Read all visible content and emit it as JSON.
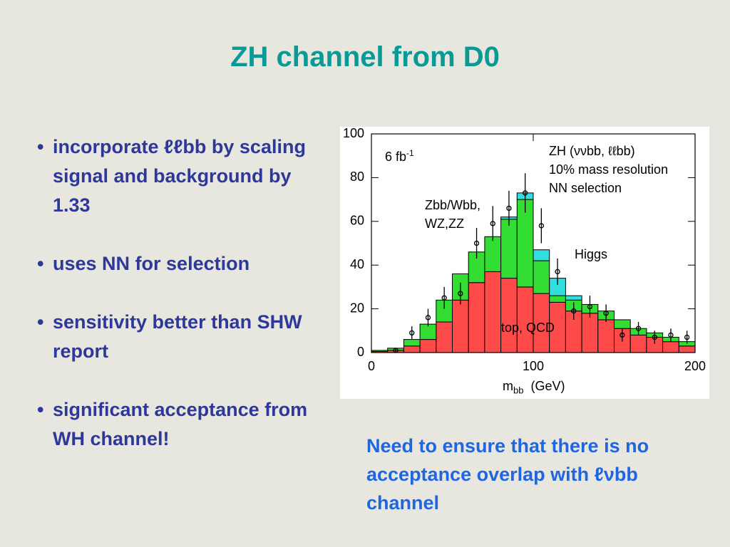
{
  "title": "ZH channel from D0",
  "bullets": [
    "incorporate ℓℓbb by scaling signal and background by 1.33",
    "uses NN for selection",
    "sensitivity better than SHW report",
    "significant acceptance from WH channel!"
  ],
  "note": "Need to ensure that there is no acceptance overlap with ℓνbb channel",
  "chart_data": {
    "type": "histogram",
    "bins": [
      0,
      10,
      20,
      30,
      40,
      50,
      60,
      70,
      80,
      90,
      100,
      110,
      120,
      130,
      140,
      150,
      160,
      170,
      180,
      190,
      200
    ],
    "series": [
      {
        "name": "top, QCD",
        "color": "#ff4a4a",
        "values": [
          0.5,
          1,
          3,
          6,
          14,
          24,
          32,
          37,
          34,
          30,
          27,
          23,
          19,
          18,
          15,
          11,
          8,
          7,
          5,
          3
        ]
      },
      {
        "name": "Zbb/Wbb, WZ,ZZ",
        "color": "#33dd33",
        "values": [
          0.5,
          1,
          3,
          7,
          10,
          12,
          14,
          16,
          27,
          40,
          15,
          3,
          5,
          4,
          4,
          4,
          3,
          2,
          2,
          2
        ]
      },
      {
        "name": "Higgs",
        "color": "#33dddd",
        "values": [
          0,
          0,
          0,
          0,
          0,
          0,
          0,
          0,
          1,
          3,
          5,
          8,
          2,
          0,
          0,
          0,
          0,
          0,
          0,
          0
        ]
      }
    ],
    "points": {
      "x": [
        15,
        25,
        35,
        45,
        55,
        65,
        75,
        85,
        95,
        105,
        115,
        125,
        135,
        145,
        155,
        165,
        175,
        185,
        195
      ],
      "values": [
        1,
        9,
        16,
        25,
        27,
        50,
        59,
        66,
        73,
        58,
        37,
        19,
        21,
        18,
        8,
        11,
        7,
        8,
        7
      ],
      "errors": [
        1,
        3,
        4,
        5,
        5,
        7,
        8,
        8,
        9,
        8,
        6,
        4,
        5,
        4,
        3,
        3,
        3,
        3,
        3
      ]
    },
    "annotations": {
      "lumi": "6 fb",
      "lumi_sup": "-1",
      "lines": [
        "ZH (ννbb, ℓℓbb)",
        "10% mass resolution",
        "NN selection"
      ]
    },
    "x_label": "m",
    "x_label_sub": "bb",
    "x_label_unit": "(GeV)",
    "xlim": [
      0,
      200
    ],
    "xticks": [
      0,
      100,
      200
    ],
    "ylim": [
      0,
      100
    ],
    "yticks": [
      0,
      20,
      40,
      60,
      80,
      100
    ]
  }
}
